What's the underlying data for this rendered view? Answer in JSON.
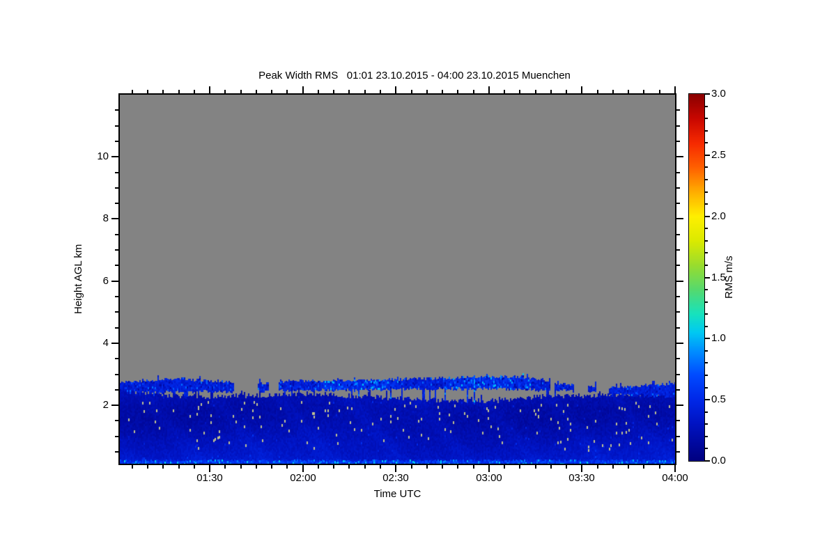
{
  "chart_data": {
    "type": "heatmap",
    "title": "Peak Width RMS   01:01 23.10.2015 - 04:00 23.10.2015 Muenchen",
    "xlabel": "Time UTC",
    "ylabel": "Height AGL km",
    "colorbar_label": "RMS m/s",
    "site": "Muenchen",
    "time_span": {
      "start": "01:01 23.10.2015",
      "end": "04:00 23.10.2015"
    },
    "x_axis": {
      "start_minutes": 61,
      "end_minutes": 240,
      "major_ticks": [
        {
          "minutes": 90,
          "label": "01:30"
        },
        {
          "minutes": 120,
          "label": "02:00"
        },
        {
          "minutes": 150,
          "label": "02:30"
        },
        {
          "minutes": 180,
          "label": "03:00"
        },
        {
          "minutes": 210,
          "label": "03:30"
        },
        {
          "minutes": 240,
          "label": "04:00"
        }
      ],
      "minor_step_minutes": 5
    },
    "y_axis": {
      "min_km": 0.12,
      "max_km": 12.0,
      "major_ticks": [
        {
          "km": 2,
          "label": "2"
        },
        {
          "km": 4,
          "label": "4"
        },
        {
          "km": 6,
          "label": "6"
        },
        {
          "km": 8,
          "label": "8"
        },
        {
          "km": 10,
          "label": "10"
        }
      ],
      "minor_step_km": 0.5
    },
    "colorbar": {
      "min": 0.0,
      "max": 3.0,
      "major_ticks": [
        "0.0",
        "0.5",
        "1.0",
        "1.5",
        "2.0",
        "2.5",
        "3.0"
      ],
      "minor_step": 0.1,
      "legend_position": "right"
    },
    "colormap_stops": [
      [
        0.0,
        "#000080"
      ],
      [
        0.3,
        "#0013C2"
      ],
      [
        0.5,
        "#0028E8"
      ],
      [
        0.7,
        "#004BFF"
      ],
      [
        0.9,
        "#0090FF"
      ],
      [
        1.05,
        "#00C9F2"
      ],
      [
        1.2,
        "#17E2BE"
      ],
      [
        1.4,
        "#55D96E"
      ],
      [
        1.6,
        "#9ADC2E"
      ],
      [
        1.8,
        "#DCEA00"
      ],
      [
        2.0,
        "#FFEF00"
      ],
      [
        2.2,
        "#FFAE00"
      ],
      [
        2.4,
        "#FF6000"
      ],
      [
        2.6,
        "#F62A00"
      ],
      [
        2.8,
        "#C90700"
      ],
      [
        3.0,
        "#8B0000"
      ]
    ],
    "no_data_color": "#838383",
    "background_color": "#FFFFFF",
    "observed_rms_range_m_s": [
      0.0,
      1.1
    ],
    "layers": {
      "boundary_layer": {
        "description": "Continuous low-level returns from ground up to ~2.1-2.5 km, RMS mostly 0.15-0.45 m/s, darkest (~0.18) between 1.3-2.0 km",
        "top_km_profile": [
          [
            0,
            2.52
          ],
          [
            0.03,
            2.42
          ],
          [
            0.08,
            2.3
          ],
          [
            0.15,
            2.28
          ],
          [
            0.25,
            2.32
          ],
          [
            0.35,
            2.34
          ],
          [
            0.45,
            2.28
          ],
          [
            0.52,
            2.2
          ],
          [
            0.6,
            2.14
          ],
          [
            0.68,
            2.15
          ],
          [
            0.75,
            2.26
          ],
          [
            0.82,
            2.3
          ],
          [
            0.9,
            2.34
          ],
          [
            1,
            2.4
          ]
        ],
        "rms_vs_height_profile": [
          [
            0.12,
            0.4
          ],
          [
            0.25,
            0.33
          ],
          [
            0.5,
            0.3
          ],
          [
            0.8,
            0.27
          ],
          [
            1.1,
            0.23
          ],
          [
            1.5,
            0.19
          ],
          [
            1.9,
            0.19
          ],
          [
            2.1,
            0.22
          ],
          [
            2.6,
            0.24
          ]
        ]
      },
      "cloud_band": {
        "description": "Patchy elevated layer ~2.4-2.9 km with brighter RMS 0.3-1.0 m/s, broken 03:20-03:40, separated from boundary layer by a gray no-data strip",
        "presence_segments": [
          [
            0.0,
            0.205
          ],
          [
            0.248,
            0.268
          ],
          [
            0.285,
            0.775
          ],
          [
            0.782,
            0.818
          ],
          [
            0.842,
            0.856
          ],
          [
            0.88,
            1.0
          ]
        ],
        "top_km_profile": [
          [
            0,
            2.72
          ],
          [
            0.06,
            2.82
          ],
          [
            0.11,
            2.86
          ],
          [
            0.16,
            2.78
          ],
          [
            0.2,
            2.74
          ],
          [
            0.25,
            2.7
          ],
          [
            0.3,
            2.78
          ],
          [
            0.4,
            2.8
          ],
          [
            0.5,
            2.84
          ],
          [
            0.6,
            2.88
          ],
          [
            0.65,
            2.93
          ],
          [
            0.71,
            2.92
          ],
          [
            0.75,
            2.84
          ],
          [
            0.78,
            2.72
          ],
          [
            0.81,
            2.66
          ],
          [
            0.85,
            2.62
          ],
          [
            0.9,
            2.56
          ],
          [
            0.95,
            2.66
          ],
          [
            1,
            2.7
          ]
        ],
        "base_km_profile": [
          [
            0,
            2.44
          ],
          [
            0.2,
            2.46
          ],
          [
            0.3,
            2.5
          ],
          [
            0.5,
            2.52
          ],
          [
            0.65,
            2.56
          ],
          [
            0.75,
            2.52
          ],
          [
            0.8,
            2.5
          ],
          [
            0.85,
            2.44
          ],
          [
            0.9,
            2.34
          ],
          [
            1,
            2.28
          ]
        ],
        "bright_zones": [
          [
            0.36,
            0.5
          ],
          [
            0.58,
            0.74
          ]
        ]
      },
      "surface_line": {
        "description": "Bright near-surface line at plot bottom, RMS ~0.5-1.1 m/s with cyan flecks",
        "below_km": 0.24
      },
      "no_data_specks": {
        "description": "Scattered tan single-pixel dropouts inside the boundary layer, mostly 0.6-2.1 km",
        "count": 150,
        "color": "#BFBF8F"
      }
    },
    "seed": 1337
  }
}
